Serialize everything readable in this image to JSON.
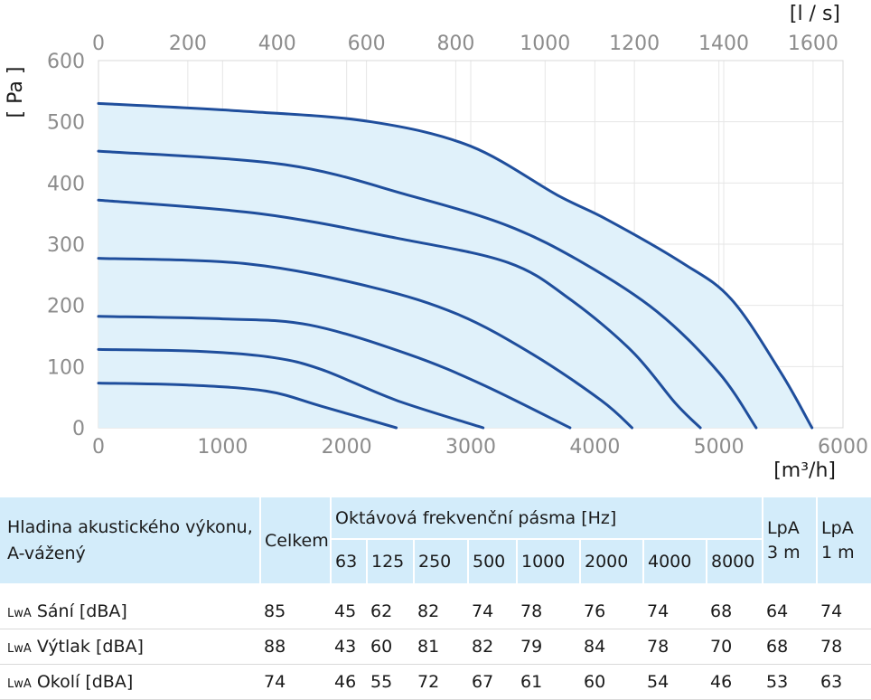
{
  "chart_data": {
    "type": "line",
    "top_axis": {
      "unit": "[l / s]",
      "min": 0,
      "max": 1667,
      "ticks": [
        0,
        200,
        400,
        600,
        800,
        1000,
        1200,
        1400,
        1600
      ]
    },
    "bottom_axis": {
      "unit": "[m³/h]",
      "min": 0,
      "max": 6000,
      "ticks": [
        0,
        1000,
        2000,
        3000,
        4000,
        5000,
        6000
      ]
    },
    "y_axis": {
      "unit": "[ Pa ]",
      "min": 0,
      "max": 600,
      "ticks": [
        0,
        100,
        200,
        300,
        400,
        500,
        600
      ]
    },
    "grid": true,
    "colors": {
      "curve": "#1f4e9c",
      "fill": "#e0f1fa",
      "grid": "#e6e6e6",
      "tick_text": "#8c8c8c"
    },
    "series": [
      {
        "points": [
          [
            0,
            73
          ],
          [
            700,
            70
          ],
          [
            1350,
            60
          ],
          [
            1800,
            35
          ],
          [
            2400,
            0
          ]
        ]
      },
      {
        "points": [
          [
            0,
            128
          ],
          [
            800,
            125
          ],
          [
            1400,
            115
          ],
          [
            1800,
            95
          ],
          [
            2400,
            45
          ],
          [
            3100,
            0
          ]
        ]
      },
      {
        "points": [
          [
            0,
            182
          ],
          [
            1000,
            178
          ],
          [
            1700,
            168
          ],
          [
            2500,
            120
          ],
          [
            3100,
            70
          ],
          [
            3800,
            0
          ]
        ]
      },
      {
        "points": [
          [
            0,
            277
          ],
          [
            1200,
            268
          ],
          [
            2200,
            230
          ],
          [
            2900,
            185
          ],
          [
            3500,
            120
          ],
          [
            4050,
            45
          ],
          [
            4300,
            0
          ]
        ]
      },
      {
        "points": [
          [
            0,
            372
          ],
          [
            1300,
            350
          ],
          [
            2400,
            310
          ],
          [
            3300,
            270
          ],
          [
            3800,
            210
          ],
          [
            4300,
            125
          ],
          [
            4650,
            40
          ],
          [
            4850,
            0
          ]
        ]
      },
      {
        "points": [
          [
            0,
            452
          ],
          [
            1500,
            430
          ],
          [
            2500,
            380
          ],
          [
            3300,
            330
          ],
          [
            3900,
            270
          ],
          [
            4500,
            190
          ],
          [
            5000,
            90
          ],
          [
            5300,
            0
          ]
        ]
      },
      {
        "points": [
          [
            0,
            530
          ],
          [
            1200,
            517
          ],
          [
            2200,
            500
          ],
          [
            3000,
            460
          ],
          [
            3700,
            380
          ],
          [
            4100,
            340
          ],
          [
            4700,
            270
          ],
          [
            5100,
            210
          ],
          [
            5500,
            90
          ],
          [
            5750,
            0
          ]
        ]
      }
    ]
  },
  "acoustic_table": {
    "label_header": "Hladina akustického výkonu, A-vážený",
    "total_header": "Celkem",
    "bands_header": "Oktávová frekvenční pásma [Hz]",
    "bands": [
      "63",
      "125",
      "250",
      "500",
      "1000",
      "2000",
      "4000",
      "8000"
    ],
    "lpa3_header": "LpA 3 m",
    "lpa1_header": "LpA 1 m",
    "rows": [
      {
        "prefix": "LwA",
        "label": "Sání [dBA]",
        "total": "85",
        "values": [
          "45",
          "62",
          "82",
          "74",
          "78",
          "76",
          "74",
          "68"
        ],
        "lpa3": "64",
        "lpa1": "74"
      },
      {
        "prefix": "LwA",
        "label": "Výtlak [dBA]",
        "total": "88",
        "values": [
          "43",
          "60",
          "81",
          "82",
          "79",
          "84",
          "78",
          "70"
        ],
        "lpa3": "68",
        "lpa1": "78"
      },
      {
        "prefix": "LwA",
        "label": "Okolí [dBA]",
        "total": "74",
        "values": [
          "46",
          "55",
          "72",
          "67",
          "61",
          "60",
          "54",
          "46"
        ],
        "lpa3": "53",
        "lpa1": "63"
      }
    ]
  }
}
